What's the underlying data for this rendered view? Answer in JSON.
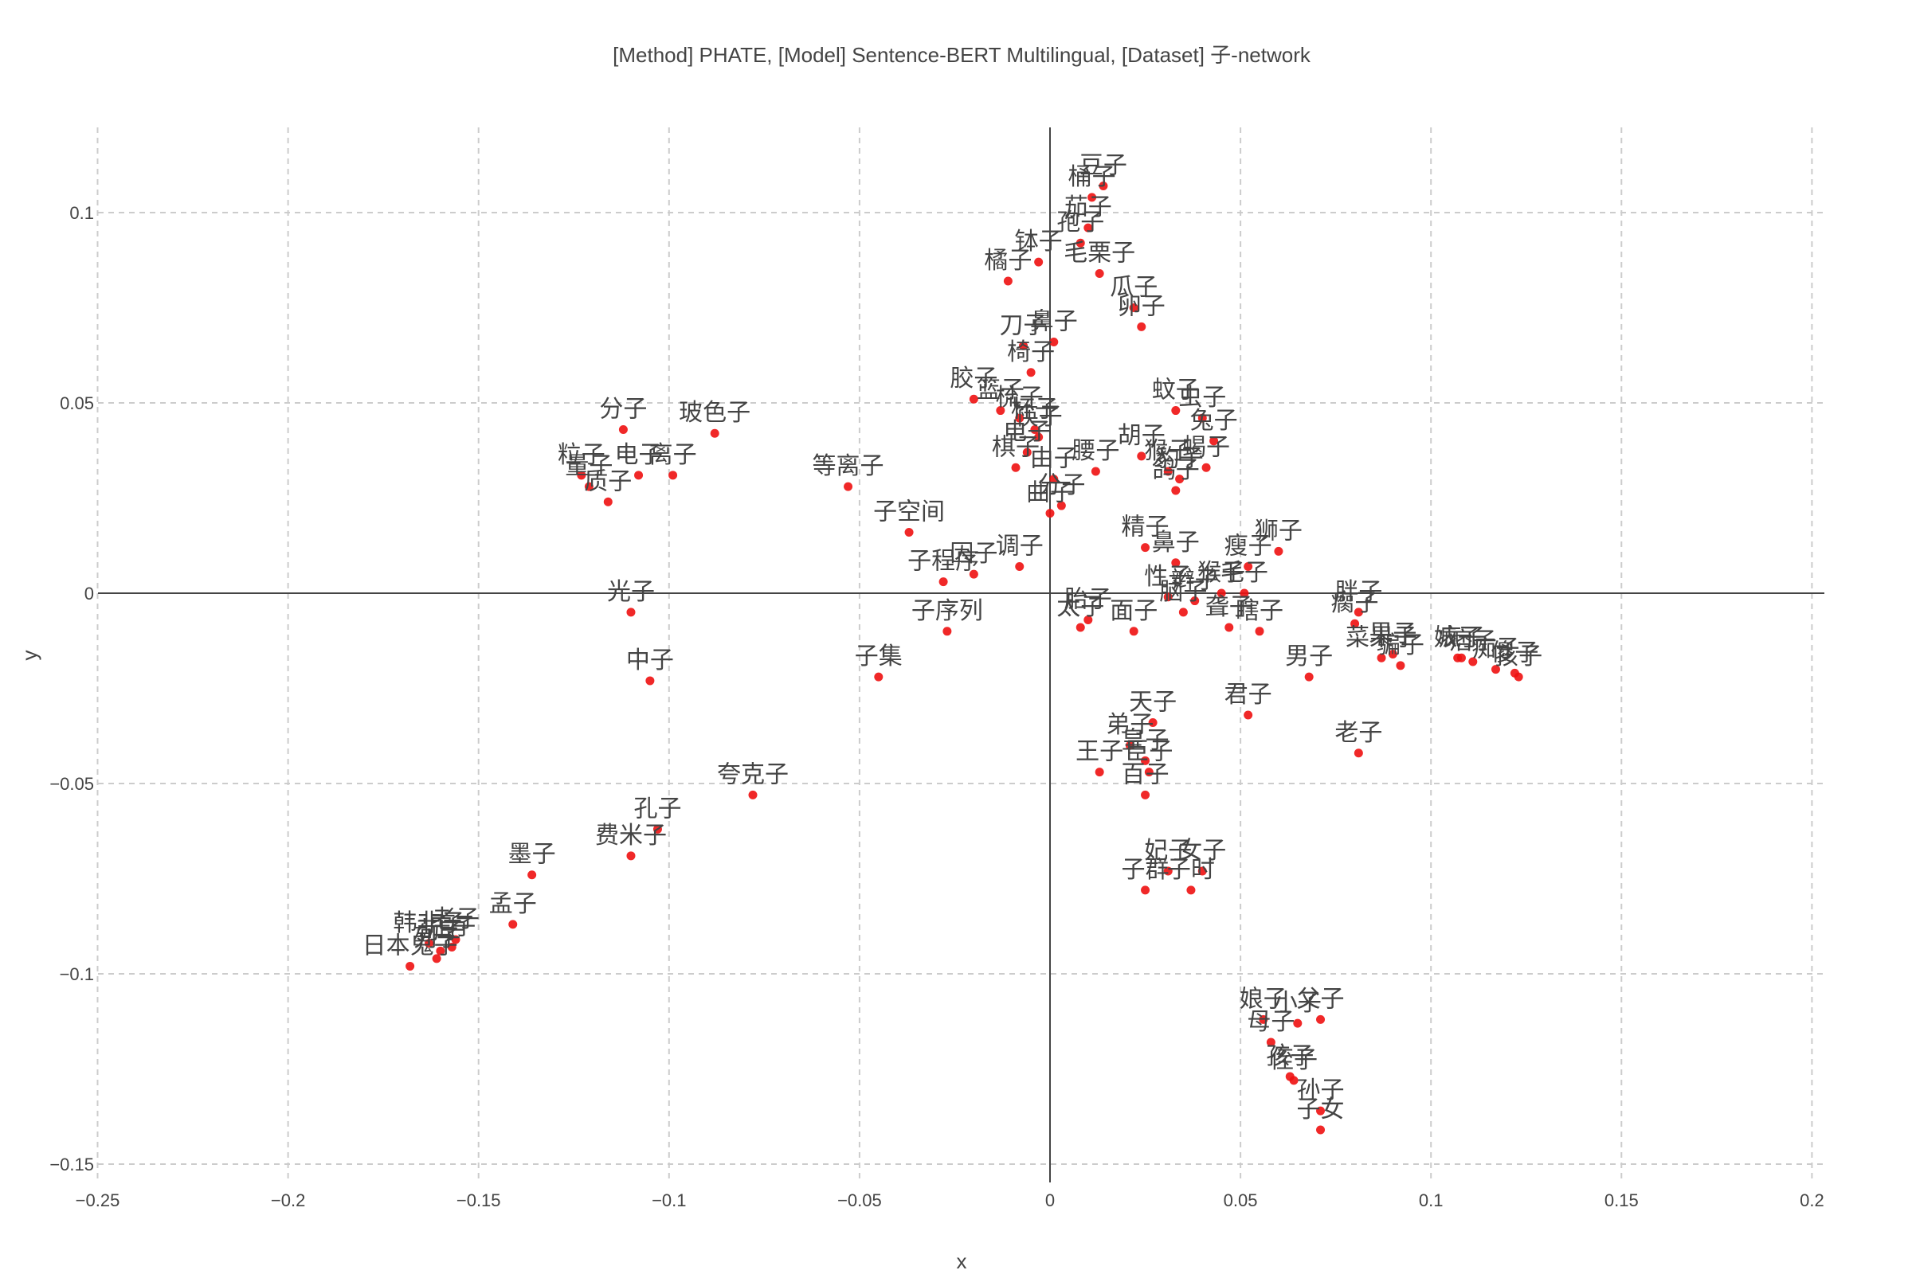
{
  "chart_data": {
    "type": "scatter",
    "title": "[Method] PHATE, [Model] Sentence-BERT Multilingual, [Dataset] 子-network",
    "xlabel": "x",
    "ylabel": "y",
    "xlim": [
      -0.25,
      0.205
    ],
    "ylim": [
      -0.155,
      0.122
    ],
    "xticks": [
      -0.25,
      -0.2,
      -0.15,
      -0.1,
      -0.05,
      0,
      0.05,
      0.1,
      0.15,
      0.2
    ],
    "xtick_labels": [
      "−0.25",
      "−0.2",
      "−0.15",
      "−0.1",
      "−0.05",
      "0",
      "0.05",
      "0.1",
      "0.15",
      "0.2"
    ],
    "yticks": [
      0.1,
      0.05,
      0,
      -0.05,
      -0.1,
      -0.15
    ],
    "ytick_labels": [
      "0.1",
      "0.05",
      "0",
      "−0.05",
      "−0.1",
      "−0.15"
    ],
    "grid": true,
    "marker_color": "#ee1111",
    "label_color": "#444444",
    "points": [
      {
        "label": "豆子",
        "x": 0.014,
        "y": 0.107
      },
      {
        "label": "桶子",
        "x": 0.011,
        "y": 0.104
      },
      {
        "label": "茄子",
        "x": 0.01,
        "y": 0.096
      },
      {
        "label": "孢子",
        "x": 0.008,
        "y": 0.092
      },
      {
        "label": "钵子",
        "x": -0.003,
        "y": 0.087
      },
      {
        "label": "毛栗子",
        "x": 0.013,
        "y": 0.084
      },
      {
        "label": "橘子",
        "x": -0.011,
        "y": 0.082
      },
      {
        "label": "瓜子",
        "x": 0.022,
        "y": 0.075
      },
      {
        "label": "卵子",
        "x": 0.024,
        "y": 0.07
      },
      {
        "label": "刀子",
        "x": -0.007,
        "y": 0.065
      },
      {
        "label": "鼻子",
        "x": 0.001,
        "y": 0.066
      },
      {
        "label": "椅子",
        "x": -0.005,
        "y": 0.058
      },
      {
        "label": "胶子",
        "x": -0.02,
        "y": 0.051
      },
      {
        "label": "篮子",
        "x": -0.013,
        "y": 0.048
      },
      {
        "label": "梳子",
        "x": -0.008,
        "y": 0.046
      },
      {
        "label": "杯子",
        "x": -0.004,
        "y": 0.043
      },
      {
        "label": "棋子",
        "x": -0.009,
        "y": 0.033
      },
      {
        "label": "电子",
        "x": -0.006,
        "y": 0.037
      },
      {
        "label": "筷子",
        "x": -0.003,
        "y": 0.041
      },
      {
        "label": "由子",
        "x": 0.001,
        "y": 0.03
      },
      {
        "label": "腰子",
        "x": 0.012,
        "y": 0.032
      },
      {
        "label": "分子",
        "x": 0.003,
        "y": 0.023
      },
      {
        "label": "曲子",
        "x": 0.0,
        "y": 0.021
      },
      {
        "label": "蚊子",
        "x": 0.033,
        "y": 0.048
      },
      {
        "label": "虫子",
        "x": 0.04,
        "y": 0.046
      },
      {
        "label": "兔子",
        "x": 0.043,
        "y": 0.04
      },
      {
        "label": "胡子",
        "x": 0.024,
        "y": 0.036
      },
      {
        "label": "猴子",
        "x": 0.031,
        "y": 0.032
      },
      {
        "label": "豹子",
        "x": 0.034,
        "y": 0.03
      },
      {
        "label": "蝎子",
        "x": 0.041,
        "y": 0.033
      },
      {
        "label": "鸽子",
        "x": 0.033,
        "y": 0.027
      },
      {
        "label": "分子",
        "x": -0.112,
        "y": 0.043
      },
      {
        "label": "玻色子",
        "x": -0.088,
        "y": 0.042
      },
      {
        "label": "粒子",
        "x": -0.123,
        "y": 0.031
      },
      {
        "label": "电子",
        "x": -0.108,
        "y": 0.031
      },
      {
        "label": "离子",
        "x": -0.099,
        "y": 0.031
      },
      {
        "label": "量子",
        "x": -0.121,
        "y": 0.028
      },
      {
        "label": "质子",
        "x": -0.116,
        "y": 0.024
      },
      {
        "label": "等离子",
        "x": -0.053,
        "y": 0.028
      },
      {
        "label": "子空间",
        "x": -0.037,
        "y": 0.016
      },
      {
        "label": "因子",
        "x": -0.02,
        "y": 0.005
      },
      {
        "label": "调子",
        "x": -0.008,
        "y": 0.007
      },
      {
        "label": "子程序",
        "x": -0.028,
        "y": 0.003
      },
      {
        "label": "精子",
        "x": 0.025,
        "y": 0.012
      },
      {
        "label": "鼻子",
        "x": 0.033,
        "y": 0.008
      },
      {
        "label": "狮子",
        "x": 0.06,
        "y": 0.011
      },
      {
        "label": "瘦子",
        "x": 0.052,
        "y": 0.007
      },
      {
        "label": "性子",
        "x": 0.031,
        "y": -0.001
      },
      {
        "label": "脑子",
        "x": 0.035,
        "y": -0.005
      },
      {
        "label": "辫子",
        "x": 0.038,
        "y": -0.002
      },
      {
        "label": "猴子",
        "x": 0.045,
        "y": 0.0
      },
      {
        "label": "毛子",
        "x": 0.051,
        "y": 0.0
      },
      {
        "label": "聋子",
        "x": 0.047,
        "y": -0.009
      },
      {
        "label": "瞎子",
        "x": 0.055,
        "y": -0.01
      },
      {
        "label": "胖子",
        "x": 0.081,
        "y": -0.005
      },
      {
        "label": "瘸子",
        "x": 0.08,
        "y": -0.008
      },
      {
        "label": "光子",
        "x": -0.11,
        "y": -0.005
      },
      {
        "label": "子序列",
        "x": -0.027,
        "y": -0.01
      },
      {
        "label": "胎子",
        "x": 0.01,
        "y": -0.007
      },
      {
        "label": "太子",
        "x": 0.008,
        "y": -0.009
      },
      {
        "label": "面子",
        "x": 0.022,
        "y": -0.01
      },
      {
        "label": "果子",
        "x": 0.09,
        "y": -0.016
      },
      {
        "label": "菜果子",
        "x": 0.087,
        "y": -0.017
      },
      {
        "label": "骗子",
        "x": 0.092,
        "y": -0.019
      },
      {
        "label": "婊子",
        "x": 0.107,
        "y": -0.017
      },
      {
        "label": "疯子",
        "x": 0.108,
        "y": -0.017
      },
      {
        "label": "痞子",
        "x": 0.111,
        "y": -0.018
      },
      {
        "label": "痴子",
        "x": 0.117,
        "y": -0.02
      },
      {
        "label": "傻子",
        "x": 0.122,
        "y": -0.021
      },
      {
        "label": "孩子",
        "x": 0.123,
        "y": -0.022
      },
      {
        "label": "中子",
        "x": -0.105,
        "y": -0.023
      },
      {
        "label": "子集",
        "x": -0.045,
        "y": -0.022
      },
      {
        "label": "男子",
        "x": 0.068,
        "y": -0.022
      },
      {
        "label": "君子",
        "x": 0.052,
        "y": -0.032
      },
      {
        "label": "老子",
        "x": 0.081,
        "y": -0.042
      },
      {
        "label": "天子",
        "x": 0.027,
        "y": -0.034
      },
      {
        "label": "弟子",
        "x": 0.021,
        "y": -0.04
      },
      {
        "label": "皇子",
        "x": 0.025,
        "y": -0.044
      },
      {
        "label": "王子",
        "x": 0.013,
        "y": -0.047
      },
      {
        "label": "臣子",
        "x": 0.026,
        "y": -0.047
      },
      {
        "label": "百子",
        "x": 0.025,
        "y": -0.053
      },
      {
        "label": "夸克子",
        "x": -0.078,
        "y": -0.053
      },
      {
        "label": "孔子",
        "x": -0.103,
        "y": -0.062
      },
      {
        "label": "费米子",
        "x": -0.11,
        "y": -0.069
      },
      {
        "label": "墨子",
        "x": -0.136,
        "y": -0.074
      },
      {
        "label": "孟子",
        "x": -0.141,
        "y": -0.087
      },
      {
        "label": "妃子",
        "x": 0.031,
        "y": -0.073
      },
      {
        "label": "女子",
        "x": 0.04,
        "y": -0.073
      },
      {
        "label": "子群",
        "x": 0.025,
        "y": -0.078
      },
      {
        "label": "子时",
        "x": 0.037,
        "y": -0.078
      },
      {
        "label": "韩非子",
        "x": -0.163,
        "y": -0.092
      },
      {
        "label": "荀子",
        "x": -0.16,
        "y": -0.094
      },
      {
        "label": "庄子",
        "x": -0.157,
        "y": -0.093
      },
      {
        "label": "老子",
        "x": -0.156,
        "y": -0.091
      },
      {
        "label": "日本鬼子",
        "x": -0.168,
        "y": -0.098
      },
      {
        "label": "列子",
        "x": -0.161,
        "y": -0.096
      },
      {
        "label": "娘子",
        "x": 0.056,
        "y": -0.112
      },
      {
        "label": "小子",
        "x": 0.065,
        "y": -0.113
      },
      {
        "label": "父子",
        "x": 0.071,
        "y": -0.112
      },
      {
        "label": "母子",
        "x": 0.058,
        "y": -0.118
      },
      {
        "label": "孩子",
        "x": 0.063,
        "y": -0.127
      },
      {
        "label": "侄子",
        "x": 0.064,
        "y": -0.128
      },
      {
        "label": "孙子",
        "x": 0.071,
        "y": -0.136
      },
      {
        "label": "子女",
        "x": 0.071,
        "y": -0.141
      }
    ]
  }
}
